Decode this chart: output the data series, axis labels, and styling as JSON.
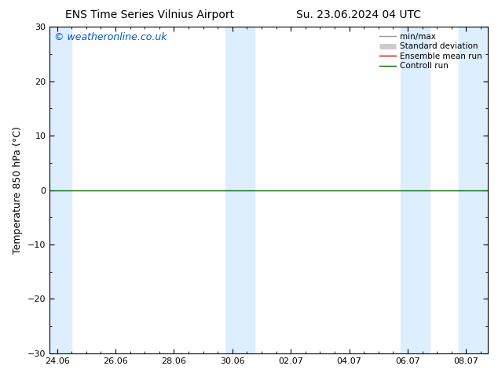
{
  "title_left": "ENS Time Series Vilnius Airport",
  "title_right": "Su. 23.06.2024 04 UTC",
  "ylabel": "Temperature 850 hPa (°C)",
  "watermark": "© weatheronline.co.uk",
  "ylim": [
    -30,
    30
  ],
  "yticks": [
    -30,
    -20,
    -10,
    0,
    10,
    20,
    30
  ],
  "x_tick_labels": [
    "24.06",
    "26.06",
    "28.06",
    "30.06",
    "02.07",
    "04.07",
    "06.07",
    "08.07"
  ],
  "x_tick_positions": [
    0,
    4,
    8,
    12,
    16,
    20,
    24,
    28
  ],
  "xlim": [
    -0.5,
    29.5
  ],
  "shaded_bands": [
    [
      -0.5,
      1.0
    ],
    [
      11.5,
      13.5
    ],
    [
      23.5,
      25.5
    ],
    [
      27.5,
      29.5
    ]
  ],
  "shaded_color": "#ddeeff",
  "background_color": "#ffffff",
  "plot_bg_color": "#ffffff",
  "zero_line_color": "#006600",
  "legend_items": [
    {
      "label": "min/max",
      "color": "#999999",
      "lw": 1.0
    },
    {
      "label": "Standard deviation",
      "color": "#cccccc",
      "lw": 5
    },
    {
      "label": "Ensemble mean run",
      "color": "#cc0000",
      "lw": 1.0
    },
    {
      "label": "Controll run",
      "color": "#006600",
      "lw": 1.0
    }
  ],
  "title_fontsize": 10,
  "tick_fontsize": 8,
  "ylabel_fontsize": 9,
  "watermark_fontsize": 9,
  "figsize": [
    6.34,
    4.9
  ],
  "dpi": 100
}
